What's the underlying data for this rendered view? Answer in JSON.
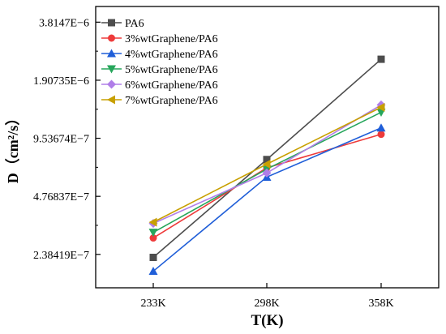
{
  "chart_data": {
    "type": "line",
    "categories": [
      "233K",
      "298K",
      "358K"
    ],
    "xlabel": "T(K)",
    "ylabel": "D（cm²/s）",
    "y_scale": "log2",
    "ylim": [
      1.6e-07,
      4.6e-06
    ],
    "y_ticks": [
      {
        "value": 2.38419e-07,
        "label": "2.38419E−7"
      },
      {
        "value": 4.76837e-07,
        "label": "4.76837E−7"
      },
      {
        "value": 9.53674e-07,
        "label": "9.53674E−7"
      },
      {
        "value": 1.90735e-06,
        "label": "1.90735E−6"
      },
      {
        "value": 3.8147e-06,
        "label": "3.8147E−6"
      }
    ],
    "legend_position": "top-left",
    "grid": false,
    "series": [
      {
        "name": "PA6",
        "color": "#4d4d4d",
        "marker": "square",
        "values": [
          2.3e-07,
          7.4e-07,
          2.45e-06
        ]
      },
      {
        "name": "3%wtGraphene/PA6",
        "color": "#ee3a3a",
        "marker": "circle",
        "values": [
          2.9e-07,
          6.7e-07,
          1e-06
        ]
      },
      {
        "name": "4%wtGraphene/PA6",
        "color": "#1f5ed8",
        "marker": "triangle-up",
        "values": [
          1.95e-07,
          6e-07,
          1.08e-06
        ]
      },
      {
        "name": "5%wtGraphene/PA6",
        "color": "#26a65b",
        "marker": "triangle-down",
        "values": [
          3.1e-07,
          6.6e-07,
          1.3e-06
        ]
      },
      {
        "name": "6%wtGraphene/PA6",
        "color": "#b07ee8",
        "marker": "diamond",
        "values": [
          3.45e-07,
          6.3e-07,
          1.42e-06
        ]
      },
      {
        "name": "7%wtGraphene/PA6",
        "color": "#c8a000",
        "marker": "triangle-left",
        "values": [
          3.5e-07,
          7e-07,
          1.38e-06
        ]
      }
    ]
  }
}
